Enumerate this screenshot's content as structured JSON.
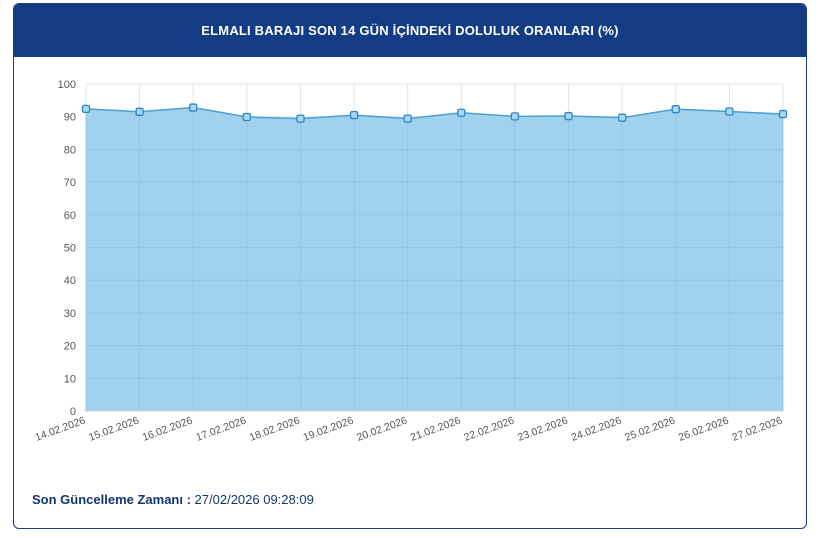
{
  "header": {
    "title": "ELMALI BARAJI SON 14 GÜN İÇİNDEKİ DOLULUK ORANLARI (%)"
  },
  "footer": {
    "label": "Son Güncelleme Zamanı :",
    "value": " 27/02/2026 09:28:09"
  },
  "colors": {
    "header_bg": "#133c84",
    "area_fill": "#9bd0ec",
    "line": "#4a9fd4",
    "marker": "#2f86c4"
  },
  "chart_data": {
    "type": "area",
    "title": "ELMALI BARAJI SON 14 GÜN İÇİNDEKİ DOLULUK ORANLARI (%)",
    "xlabel": "",
    "ylabel": "",
    "ylim": [
      0,
      100
    ],
    "yticks": [
      "0",
      "10",
      "20",
      "30",
      "40",
      "50",
      "60",
      "70",
      "80",
      "90",
      "100"
    ],
    "grid": true,
    "legend": "none",
    "categories": [
      "14.02.2026",
      "15.02.2026",
      "16.02.2026",
      "17.02.2026",
      "18.02.2026",
      "19.02.2026",
      "20.02.2026",
      "21.02.2026",
      "22.02.2026",
      "23.02.2026",
      "24.02.2026",
      "25.02.2026",
      "26.02.2026",
      "27.02.2026"
    ],
    "series": [
      {
        "values": [
          92.4,
          91.5,
          92.8,
          89.9,
          89.4,
          90.5,
          89.4,
          91.2,
          90.1,
          90.2,
          89.7,
          92.3,
          91.6,
          90.8
        ]
      }
    ]
  }
}
